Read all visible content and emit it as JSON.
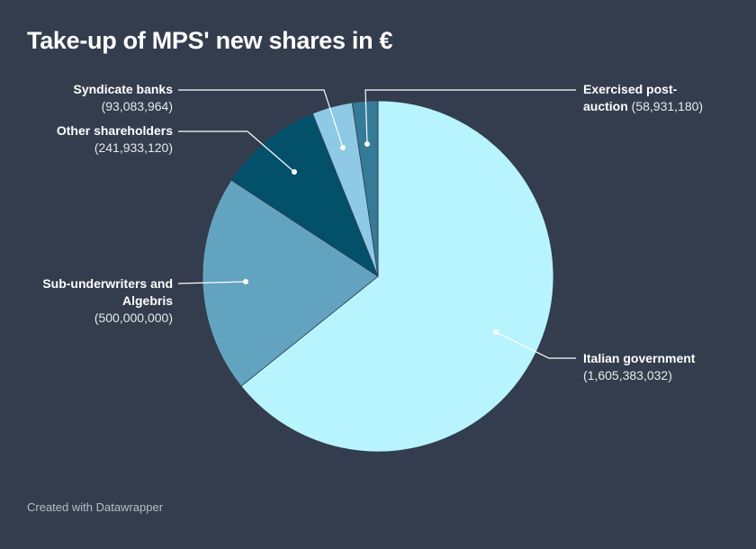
{
  "title": "Take-up of MPS' new shares in €",
  "footer": "Created with Datawrapper",
  "chart_data": {
    "type": "pie",
    "title": "Take-up of MPS' new shares in €",
    "start": "top, clockwise",
    "slices": [
      {
        "label": "Italian government",
        "value": 1605383032,
        "value_text": "(1,605,383,032)",
        "color": "#b7f4fe"
      },
      {
        "label": "Sub-underwriters and Algebris",
        "value": 500000000,
        "value_text": "(500,000,000)",
        "color": "#62a4c0"
      },
      {
        "label": "Other shareholders",
        "value": 241933120,
        "value_text": "(241,933,120)",
        "color": "#03506a"
      },
      {
        "label": "Syndicate banks",
        "value": 93083964,
        "value_text": "(93,083,964)",
        "color": "#8ecae6"
      },
      {
        "label": "Exercised post-auction",
        "value": 58931180,
        "value_text": "(58,931,180)",
        "color": "#357a96"
      }
    ]
  }
}
